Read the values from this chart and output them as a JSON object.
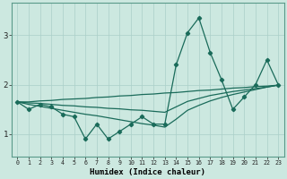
{
  "x": [
    0,
    1,
    2,
    3,
    4,
    5,
    6,
    7,
    8,
    9,
    10,
    11,
    12,
    13,
    14,
    15,
    16,
    17,
    18,
    19,
    20,
    21,
    22,
    23
  ],
  "line_main": [
    1.65,
    1.5,
    1.6,
    1.55,
    1.4,
    1.35,
    0.9,
    1.2,
    0.9,
    1.05,
    1.2,
    1.35,
    1.2,
    1.2,
    2.4,
    3.05,
    3.35,
    2.65,
    2.1,
    1.5,
    1.75,
    2.0,
    2.5,
    2.0
  ],
  "trend_upper": [
    1.65,
    1.65,
    1.67,
    1.68,
    1.7,
    1.71,
    1.72,
    1.74,
    1.75,
    1.77,
    1.78,
    1.8,
    1.81,
    1.83,
    1.84,
    1.86,
    1.88,
    1.89,
    1.91,
    1.93,
    1.94,
    1.96,
    1.97,
    1.99
  ],
  "trend_mid": [
    1.65,
    1.63,
    1.62,
    1.6,
    1.58,
    1.57,
    1.55,
    1.54,
    1.52,
    1.51,
    1.49,
    1.48,
    1.46,
    1.44,
    1.55,
    1.66,
    1.72,
    1.78,
    1.82,
    1.86,
    1.89,
    1.92,
    1.95,
    1.99
  ],
  "trend_lower": [
    1.65,
    1.6,
    1.56,
    1.52,
    1.48,
    1.44,
    1.4,
    1.37,
    1.33,
    1.29,
    1.25,
    1.21,
    1.18,
    1.14,
    1.3,
    1.48,
    1.58,
    1.67,
    1.74,
    1.8,
    1.85,
    1.9,
    1.95,
    1.99
  ],
  "bg_color": "#cce8e0",
  "line_color": "#1a6b5a",
  "grid_color": "#aacfc8",
  "xlabel": "Humidex (Indice chaleur)",
  "yticks": [
    1,
    2,
    3
  ],
  "xticks": [
    0,
    1,
    2,
    3,
    4,
    5,
    6,
    7,
    8,
    9,
    10,
    11,
    12,
    13,
    14,
    15,
    16,
    17,
    18,
    19,
    20,
    21,
    22,
    23
  ],
  "ylim": [
    0.55,
    3.65
  ],
  "xlim": [
    -0.5,
    23.5
  ]
}
